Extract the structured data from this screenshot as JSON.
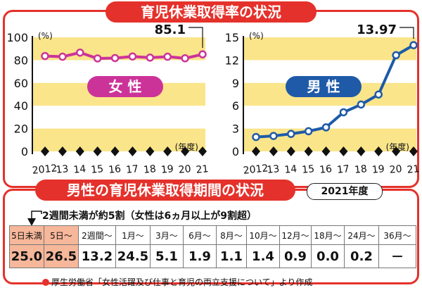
{
  "titles": {
    "top": "育児休業取得率の状況",
    "bottom": "男性の育児休業取得期間の状況",
    "bottom_year": "2021年度"
  },
  "colors": {
    "frame": "#e5312b",
    "band": "#fbe58a",
    "female_line": "#cc3399",
    "male_line": "#1e5aa8",
    "highlight": "#f6b79a"
  },
  "chart_data": [
    {
      "type": "line",
      "label": "女 性",
      "x": [
        "2012",
        "13",
        "14",
        "15",
        "16",
        "17",
        "18",
        "19",
        "20",
        "21"
      ],
      "values": [
        83.6,
        83.0,
        86.6,
        81.5,
        81.8,
        83.2,
        82.2,
        83.0,
        81.6,
        85.1
      ],
      "yticks": [
        0,
        20,
        40,
        60,
        80,
        100
      ],
      "ylim": [
        0,
        100
      ],
      "yunit": "(%)",
      "xunit": "(年度)",
      "annotation": "85.1"
    },
    {
      "type": "line",
      "label": "男 性",
      "x": [
        "2012",
        "13",
        "14",
        "15",
        "16",
        "17",
        "18",
        "19",
        "20",
        "21"
      ],
      "values": [
        1.89,
        2.03,
        2.3,
        2.65,
        3.16,
        5.14,
        6.16,
        7.48,
        12.65,
        13.97
      ],
      "yticks": [
        0,
        3,
        6,
        9,
        12,
        15
      ],
      "ylim": [
        0,
        15
      ],
      "yunit": "(%)",
      "xunit": "(年度)",
      "annotation": "13.97"
    },
    {
      "type": "table",
      "headers": [
        "5日未満",
        "5日～",
        "2週間～",
        "1月～",
        "3月～",
        "6月～",
        "8月～",
        "10月～",
        "12月～",
        "18月～",
        "24月～",
        "36月～"
      ],
      "values": [
        "25.0",
        "26.5",
        "13.2",
        "24.5",
        "5.1",
        "1.9",
        "1.1",
        "1.4",
        "0.9",
        "0.0",
        "0.2",
        "－"
      ],
      "highlighted": [
        0,
        1
      ]
    }
  ],
  "note": "2週間未満が約5割（女性は6ヵ月以上が9割超）",
  "source": "厚生労働省「女性活躍及び仕事と育児の両立支援について」より作成"
}
